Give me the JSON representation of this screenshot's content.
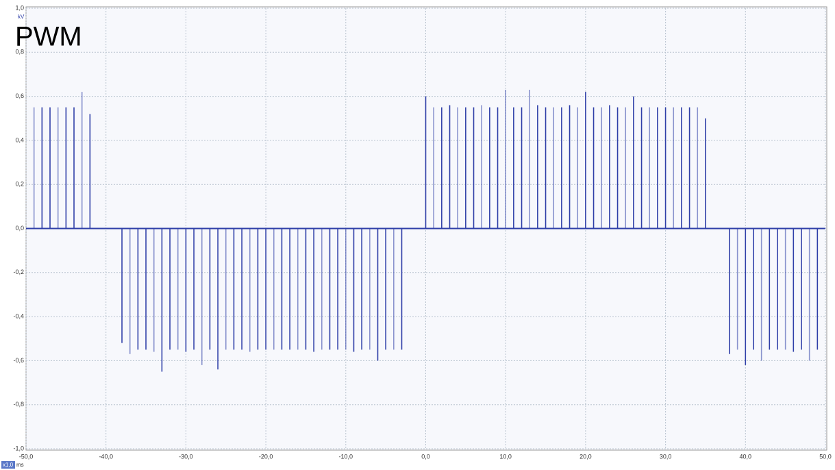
{
  "chart_data": {
    "type": "stem",
    "title": "PWM",
    "y_unit": "kV",
    "x_unit": "ms",
    "zoom_label": "x1,0",
    "xlim": [
      -50,
      50
    ],
    "xticks": [
      {
        "value": -50,
        "label": "-50,0"
      },
      {
        "value": -40,
        "label": "-40,0"
      },
      {
        "value": -30,
        "label": "-30,0"
      },
      {
        "value": -20,
        "label": "-20,0"
      },
      {
        "value": -10,
        "label": "-10,0"
      },
      {
        "value": 0,
        "label": "0,0"
      },
      {
        "value": 10,
        "label": "10,0"
      },
      {
        "value": 20,
        "label": "20,0"
      },
      {
        "value": 30,
        "label": "30,0"
      },
      {
        "value": 40,
        "label": "40,0"
      },
      {
        "value": 50,
        "label": "50,0"
      }
    ],
    "ylim": [
      -1,
      1
    ],
    "yticks": [
      {
        "value": -1,
        "label": "-1,0"
      },
      {
        "value": -0.8,
        "label": "-0,8"
      },
      {
        "value": -0.6,
        "label": "-0,6"
      },
      {
        "value": -0.4,
        "label": "-0,4"
      },
      {
        "value": -0.2,
        "label": "-0,2"
      },
      {
        "value": 0,
        "label": "0,0"
      },
      {
        "value": 0.2,
        "label": "0,2"
      },
      {
        "value": 0.4,
        "label": "0,4"
      },
      {
        "value": 0.6,
        "label": "0,6"
      },
      {
        "value": 0.8,
        "label": "0,8"
      },
      {
        "value": 1,
        "label": "1,0"
      }
    ],
    "grid": true,
    "color": "#2f3fa8",
    "x": [
      -49,
      -48,
      -47,
      -46,
      -45,
      -44,
      -43,
      -42,
      -38,
      -37,
      -36,
      -35,
      -34,
      -33,
      -32,
      -31,
      -30,
      -29,
      -28,
      -27,
      -26,
      -25,
      -24,
      -23,
      -22,
      -21,
      -20,
      -19,
      -18,
      -17,
      -16,
      -15,
      -14,
      -13,
      -12,
      -11,
      -10,
      -9,
      -8,
      -7,
      -6,
      -5,
      -4,
      -3,
      0,
      1,
      2,
      3,
      4,
      5,
      6,
      7,
      8,
      9,
      10,
      11,
      12,
      13,
      14,
      15,
      16,
      17,
      18,
      19,
      20,
      21,
      22,
      23,
      24,
      25,
      26,
      27,
      28,
      29,
      30,
      31,
      32,
      33,
      34,
      35,
      38,
      39,
      40,
      41,
      42,
      43,
      44,
      45,
      46,
      47,
      48,
      49
    ],
    "values": [
      0.55,
      0.55,
      0.55,
      0.55,
      0.55,
      0.55,
      0.62,
      0.52,
      -0.52,
      -0.57,
      -0.55,
      -0.55,
      -0.56,
      -0.65,
      -0.55,
      -0.55,
      -0.56,
      -0.55,
      -0.62,
      -0.55,
      -0.64,
      -0.55,
      -0.55,
      -0.55,
      -0.56,
      -0.55,
      -0.55,
      -0.55,
      -0.55,
      -0.55,
      -0.55,
      -0.55,
      -0.56,
      -0.55,
      -0.55,
      -0.55,
      -0.55,
      -0.56,
      -0.55,
      -0.55,
      -0.6,
      -0.55,
      -0.55,
      -0.55,
      0.6,
      0.55,
      0.55,
      0.56,
      0.55,
      0.55,
      0.55,
      0.56,
      0.55,
      0.55,
      0.63,
      0.55,
      0.55,
      0.63,
      0.56,
      0.55,
      0.55,
      0.55,
      0.56,
      0.55,
      0.62,
      0.55,
      0.55,
      0.56,
      0.55,
      0.55,
      0.6,
      0.55,
      0.55,
      0.55,
      0.55,
      0.55,
      0.55,
      0.55,
      0.55,
      0.5,
      -0.57,
      -0.55,
      -0.62,
      -0.55,
      -0.6,
      -0.55,
      -0.55,
      -0.55,
      -0.56,
      -0.55,
      -0.6,
      -0.55
    ]
  }
}
